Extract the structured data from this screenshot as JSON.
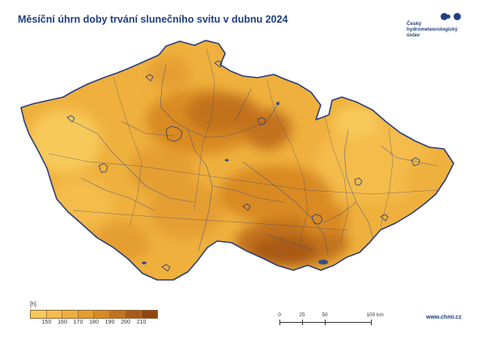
{
  "title": "Měsíční úhrn doby trvání slunečního svitu v dubnu 2024",
  "logo": {
    "line1": "Český",
    "line2": "hydrometeorologický",
    "line3": "ústav"
  },
  "legend": {
    "unit": "[h]",
    "colors": [
      "#f7c95a",
      "#f4bc4b",
      "#efb03d",
      "#e59e30",
      "#d98a24",
      "#c3721d",
      "#a95a19",
      "#914414"
    ],
    "ticks": [
      "150",
      "160",
      "170",
      "180",
      "190",
      "200",
      "210"
    ]
  },
  "scale_bar": {
    "labels": [
      "0",
      "25",
      "50",
      "100 km"
    ]
  },
  "url": "www.chmi.cz",
  "colors": {
    "title": "#1f3f82",
    "border": "#2b3f7a",
    "river": "#2f4f8a",
    "base_fill": "#efb03d"
  }
}
